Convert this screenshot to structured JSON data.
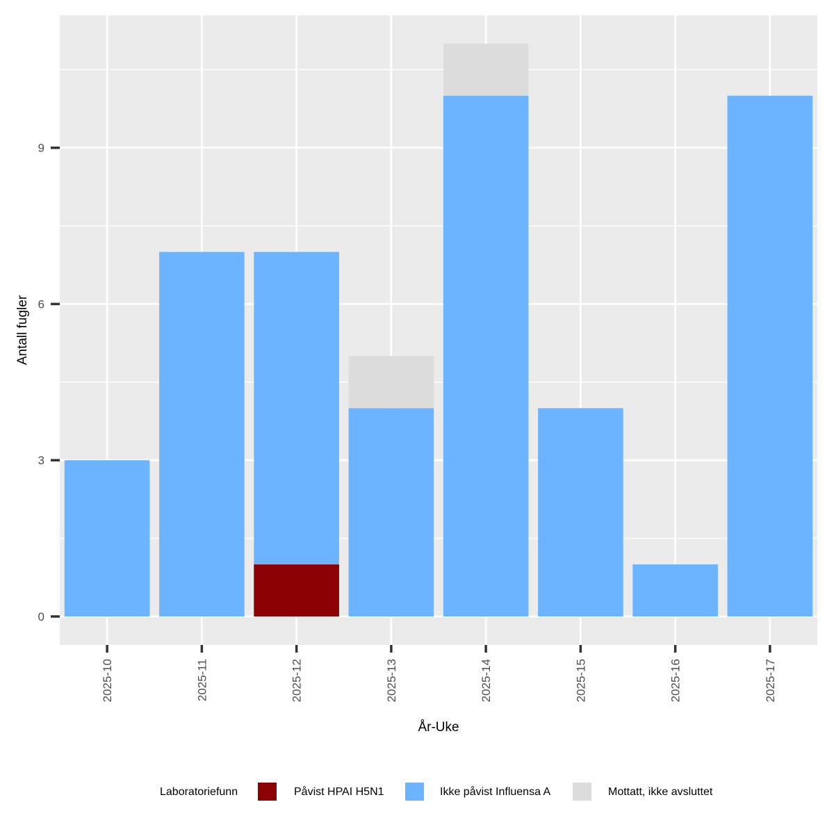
{
  "chart_data": {
    "type": "bar",
    "stacked": true,
    "categories": [
      "2025-10",
      "2025-11",
      "2025-12",
      "2025-13",
      "2025-14",
      "2025-15",
      "2025-16",
      "2025-17"
    ],
    "series": [
      {
        "name": "Påvist HPAI H5N1",
        "color": "#8b0000",
        "values": [
          0,
          0,
          1,
          0,
          0,
          0,
          0,
          0
        ]
      },
      {
        "name": "Ikke påvist Influensa A",
        "color": "#6cb4ff",
        "values": [
          3,
          7,
          6,
          4,
          10,
          4,
          1,
          10
        ]
      },
      {
        "name": "Mottatt, ikke avsluttet",
        "color": "#dcdcdc",
        "values": [
          0,
          0,
          0,
          1,
          1,
          0,
          0,
          0
        ]
      }
    ],
    "xlabel": "År-Uke",
    "ylabel": "Antall fugler",
    "ylim": [
      0,
      11
    ],
    "yticks": [
      0,
      3,
      6,
      9
    ],
    "grid": true,
    "legend_title": "Laboratoriefunn",
    "legend_placement": "bottom"
  },
  "colors": {
    "panel_background": "#ebebeb",
    "grid": "#ffffff"
  }
}
